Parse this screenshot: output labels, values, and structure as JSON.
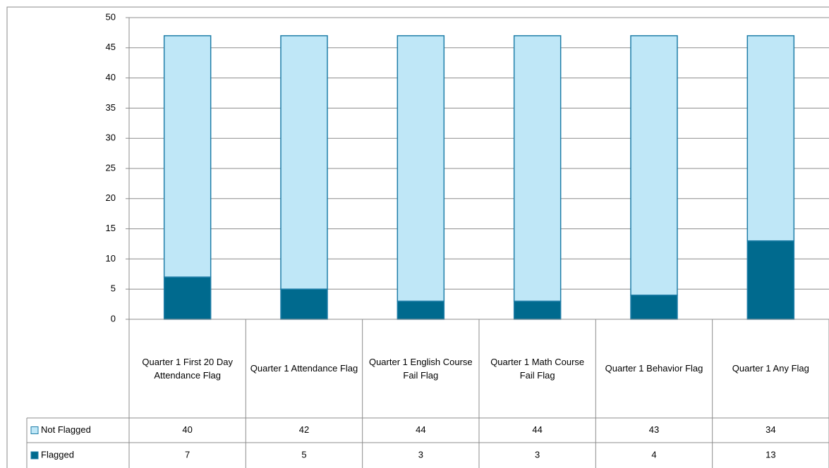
{
  "chart_data": {
    "type": "stacked_bar",
    "categories": [
      "Quarter 1 First 20 Day Attendance Flag",
      "Quarter 1 Attendance Flag",
      "Quarter 1 English Course Fail Flag",
      "Quarter 1 Math Course Fail Flag",
      "Quarter 1 Behavior Flag",
      "Quarter 1 Any Flag"
    ],
    "series": [
      {
        "name": "Not Flagged",
        "color": "#bfe7f7",
        "values": [
          40,
          42,
          44,
          44,
          43,
          34
        ]
      },
      {
        "name": "Flagged",
        "color": "#006a8e",
        "values": [
          7,
          5,
          3,
          3,
          4,
          13
        ]
      }
    ],
    "ylim": [
      0,
      50
    ],
    "yticks": [
      0,
      5,
      10,
      15,
      20,
      25,
      30,
      35,
      40,
      45,
      50
    ],
    "grid": true
  }
}
